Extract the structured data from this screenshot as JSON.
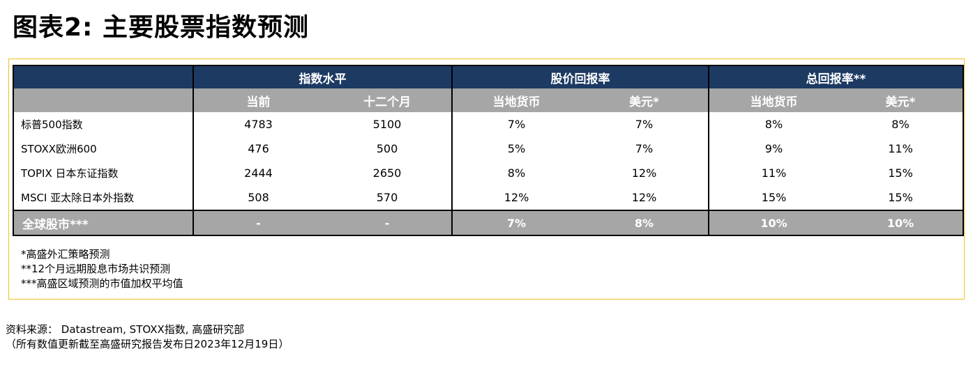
{
  "title": "图表2: 主要股票指数预测",
  "table": {
    "group_headers": [
      "指数水平",
      "股价回报率",
      "总回报率**"
    ],
    "sub_headers": [
      "当前",
      "十二个月",
      "当地货币",
      "美元*",
      "当地货币",
      "美元*"
    ],
    "rows": [
      {
        "name": "标普500指数",
        "values": [
          "4783",
          "5100",
          "7%",
          "7%",
          "8%",
          "8%"
        ]
      },
      {
        "name": "STOXX欧洲600",
        "values": [
          "476",
          "500",
          "5%",
          "7%",
          "9%",
          "11%"
        ]
      },
      {
        "name": "TOPIX 日本东证指数",
        "values": [
          "2444",
          "2650",
          "8%",
          "12%",
          "11%",
          "15%"
        ]
      },
      {
        "name": "MSCI 亚太除日本外指数",
        "values": [
          "508",
          "570",
          "12%",
          "12%",
          "15%",
          "15%"
        ]
      }
    ],
    "total": {
      "name": "全球股市***",
      "values": [
        "-",
        "-",
        "7%",
        "8%",
        "10%",
        "10%"
      ]
    }
  },
  "notes": [
    "*高盛外汇策略预测",
    "**12个月远期股息市场共识预测",
    "***高盛区域预测的市值加权平均值"
  ],
  "source": {
    "line1": "资料来源： Datastream, STOXX指数, 高盛研究部",
    "line2": "（所有数值更新截至高盛研究报告发布日2023年12月19日）"
  },
  "colors": {
    "header_navy": "#1d3a63",
    "header_grey": "#a6a6a6",
    "frame_gold": "#f0c020"
  }
}
